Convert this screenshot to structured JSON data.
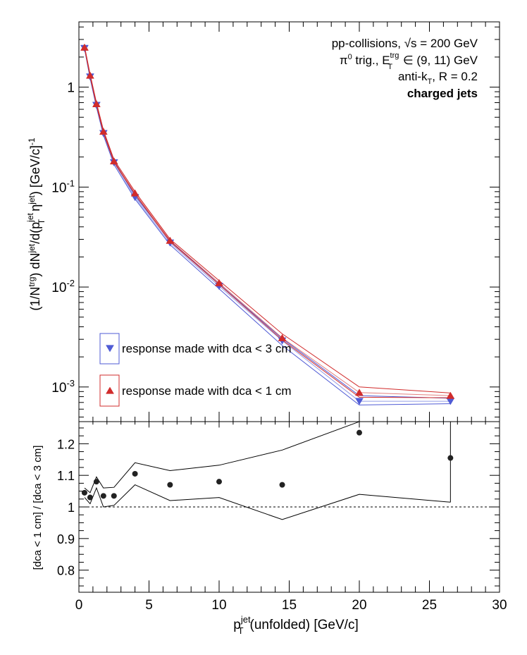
{
  "chart_data": [
    {
      "type": "line",
      "panel": "top",
      "title": "",
      "ylabel": "(1/N^trg) dN^jet/d(p_T^jet η^jet) [GeV/c]^-1",
      "xlim": [
        0,
        30
      ],
      "ylim": [
        0.00045,
        4.5
      ],
      "y_scale": "log",
      "y_tick_labels": [
        "10^-3",
        "10^-2",
        "10^-1",
        "1"
      ],
      "annotations": {
        "line1": "pp-collisions, √s = 200 GeV",
        "line2": "π⁰ trig., E_T^trg ∈ (9, 11) GeV",
        "line3": "anti-k_T, R = 0.2",
        "line4": "charged jets"
      },
      "legend_position": "bottom-left",
      "series": [
        {
          "name": "response made with dca < 3 cm",
          "color": "#4f5bd5",
          "marker": "triangle-down",
          "x": [
            0.4,
            0.8,
            1.25,
            1.75,
            2.5,
            4.0,
            6.5,
            10.0,
            14.5,
            20.0,
            26.5
          ],
          "y": [
            2.45,
            1.27,
            0.66,
            0.345,
            0.176,
            0.079,
            0.0277,
            0.0102,
            0.0029,
            0.00072,
            0.00072
          ],
          "band_low": [
            2.4,
            1.22,
            0.63,
            0.33,
            0.168,
            0.076,
            0.0265,
            0.0096,
            0.0026,
            0.00066,
            0.00068
          ],
          "band_high": [
            2.5,
            1.31,
            0.69,
            0.36,
            0.183,
            0.082,
            0.029,
            0.0107,
            0.00305,
            0.00082,
            0.00077
          ]
        },
        {
          "name": "response made with dca < 1 cm",
          "color": "#d12c2c",
          "marker": "triangle-up",
          "x": [
            0.4,
            0.8,
            1.25,
            1.75,
            2.5,
            4.0,
            6.5,
            10.0,
            14.5,
            20.0,
            26.5
          ],
          "y": [
            2.5,
            1.31,
            0.68,
            0.36,
            0.182,
            0.087,
            0.0292,
            0.011,
            0.0031,
            0.00088,
            0.00082
          ],
          "band_low": [
            2.45,
            1.28,
            0.66,
            0.35,
            0.177,
            0.085,
            0.0285,
            0.0106,
            0.00295,
            0.00079,
            0.00078
          ],
          "band_high": [
            2.56,
            1.35,
            0.7,
            0.372,
            0.188,
            0.09,
            0.0302,
            0.0116,
            0.0034,
            0.001,
            0.00087
          ]
        }
      ]
    },
    {
      "type": "scatter",
      "panel": "bottom",
      "xlabel": "p_T^jet(unfolded) [GeV/c]",
      "ylabel": "[dca < 1 cm] / [dca < 3 cm]",
      "xlim": [
        0,
        30
      ],
      "ylim": [
        0.73,
        1.27
      ],
      "x_ticks": [
        0,
        5,
        10,
        15,
        20,
        25,
        30
      ],
      "y_ticks": [
        0.8,
        0.9,
        1.0,
        1.1,
        1.2
      ],
      "y_tick_labels": [
        "0.8",
        "0.9",
        "1",
        "1.1",
        "1.2"
      ],
      "reference_line": 1.0,
      "points": {
        "x": [
          0.4,
          0.8,
          1.25,
          1.75,
          2.5,
          4.0,
          6.5,
          10.0,
          14.5,
          20.0,
          26.5
        ],
        "y": [
          1.045,
          1.03,
          1.08,
          1.035,
          1.035,
          1.105,
          1.07,
          1.08,
          1.07,
          1.235,
          1.155
        ]
      },
      "band": {
        "upper": [
          1.06,
          1.045,
          1.095,
          1.06,
          1.062,
          1.14,
          1.115,
          1.132,
          1.18,
          1.27,
          1.27
        ],
        "lower": [
          1.03,
          1.01,
          1.06,
          1.0,
          1.005,
          1.07,
          1.02,
          1.03,
          0.96,
          1.04,
          1.015
        ]
      }
    }
  ]
}
